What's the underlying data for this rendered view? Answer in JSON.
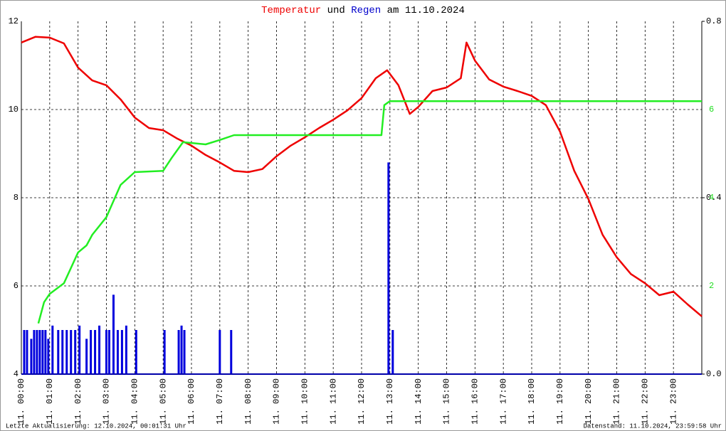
{
  "chart_data": {
    "type": "line",
    "title": [
      "Temperatur",
      "und",
      "Regen",
      "am 11.10.2024"
    ],
    "title_colors": [
      "#ee0000",
      "#000000",
      "#0000cc",
      "#000000"
    ],
    "xlim": [
      0,
      24
    ],
    "xticks": [
      {
        "value": 0,
        "label": "11. 00:00"
      },
      {
        "value": 1,
        "label": "11. 01:00"
      },
      {
        "value": 2,
        "label": "11. 02:00"
      },
      {
        "value": 3,
        "label": "11. 03:00"
      },
      {
        "value": 4,
        "label": "11. 04:00"
      },
      {
        "value": 5,
        "label": "11. 05:00"
      },
      {
        "value": 6,
        "label": "11. 06:00"
      },
      {
        "value": 7,
        "label": "11. 07:00"
      },
      {
        "value": 8,
        "label": "11. 08:00"
      },
      {
        "value": 9,
        "label": "11. 09:00"
      },
      {
        "value": 10,
        "label": "11. 10:00"
      },
      {
        "value": 11,
        "label": "11. 11:00"
      },
      {
        "value": 12,
        "label": "11. 12:00"
      },
      {
        "value": 13,
        "label": "11. 13:00"
      },
      {
        "value": 14,
        "label": "11. 14:00"
      },
      {
        "value": 15,
        "label": "11. 15:00"
      },
      {
        "value": 16,
        "label": "11. 16:00"
      },
      {
        "value": 17,
        "label": "11. 17:00"
      },
      {
        "value": 18,
        "label": "11. 18:00"
      },
      {
        "value": 19,
        "label": "11. 19:00"
      },
      {
        "value": 20,
        "label": "11. 20:00"
      },
      {
        "value": 21,
        "label": "11. 21:00"
      },
      {
        "value": 22,
        "label": "11. 22:00"
      },
      {
        "value": 23,
        "label": "11. 23:00"
      }
    ],
    "ylim": [
      4,
      12
    ],
    "yticks": [
      4,
      6,
      8,
      10,
      12
    ],
    "y2lim": [
      0,
      0.8
    ],
    "y2ticks": [
      {
        "value": 0,
        "label": "0.0"
      },
      0.4,
      0.8
    ],
    "y3lim": [
      0,
      8
    ],
    "y3ticks": [
      2,
      4,
      6
    ],
    "y3color": "#22dd22",
    "grid": true,
    "series": [
      {
        "type": "line",
        "color": "#ee0000",
        "x": [
          0,
          0.5,
          1,
          1.5,
          2,
          2.5,
          3,
          3.5,
          4,
          4.5,
          5,
          5.5,
          6,
          6.5,
          7,
          7.5,
          8,
          8.5,
          9,
          9.5,
          10,
          10.5,
          11,
          11.5,
          12,
          12.5,
          12.9,
          13.3,
          13.7,
          14,
          14.5,
          15,
          15.5,
          15.7,
          16,
          16.5,
          17,
          17.5,
          18,
          18.5,
          19,
          19.5,
          20,
          20.5,
          21,
          21.5,
          22,
          22.5,
          23,
          23.5,
          24
        ],
        "values": [
          11.52,
          11.65,
          11.63,
          11.5,
          10.95,
          10.66,
          10.55,
          10.23,
          9.82,
          9.58,
          9.53,
          9.34,
          9.18,
          8.97,
          8.8,
          8.61,
          8.58,
          8.65,
          8.94,
          9.18,
          9.37,
          9.58,
          9.77,
          9.98,
          10.26,
          10.71,
          10.89,
          10.55,
          9.9,
          10.06,
          10.42,
          10.5,
          10.71,
          11.52,
          11.11,
          10.68,
          10.52,
          10.42,
          10.31,
          10.1,
          9.5,
          8.61,
          7.97,
          7.16,
          6.65,
          6.27,
          6.06,
          5.79,
          5.87,
          5.58,
          5.31
        ]
      },
      {
        "type": "bar",
        "axis": "y2",
        "color": "#0000dd",
        "x": [
          0.1,
          0.2,
          0.35,
          0.45,
          0.55,
          0.65,
          0.75,
          0.85,
          0.95,
          1.1,
          1.3,
          1.45,
          1.6,
          1.75,
          1.9,
          2.05,
          2.3,
          2.45,
          2.6,
          2.75,
          3.0,
          3.1,
          3.25,
          3.4,
          3.55,
          3.7,
          4.05,
          5.05,
          5.55,
          5.65,
          5.75,
          7.0,
          7.4,
          12.95,
          13.1
        ],
        "values": [
          0.1,
          0.1,
          0.08,
          0.1,
          0.1,
          0.1,
          0.1,
          0.1,
          0.08,
          0.11,
          0.1,
          0.1,
          0.1,
          0.1,
          0.1,
          0.11,
          0.08,
          0.1,
          0.1,
          0.11,
          0.1,
          0.1,
          0.18,
          0.1,
          0.1,
          0.11,
          0.1,
          0.1,
          0.1,
          0.11,
          0.1,
          0.1,
          0.1,
          0.48,
          0.1
        ]
      },
      {
        "type": "line",
        "axis": "y3",
        "color": "#22ee22",
        "x": [
          0.6,
          0.8,
          1,
          1.5,
          2,
          2.3,
          2.5,
          3,
          3.5,
          4,
          5,
          5.3,
          5.7,
          6.5,
          7,
          7.5,
          12.7,
          12.8,
          13,
          24
        ],
        "values": [
          1.15,
          1.63,
          1.82,
          2.06,
          2.76,
          2.92,
          3.16,
          3.56,
          4.29,
          4.58,
          4.61,
          4.9,
          5.26,
          5.21,
          5.31,
          5.42,
          5.42,
          6.1,
          6.19,
          6.19
        ]
      }
    ]
  },
  "footer": {
    "left": "Letzte Aktualisierung: 12.10.2024, 00:01:31 Uhr",
    "right": "Datenstand: 11.10.2024, 23:59:58 Uhr"
  }
}
